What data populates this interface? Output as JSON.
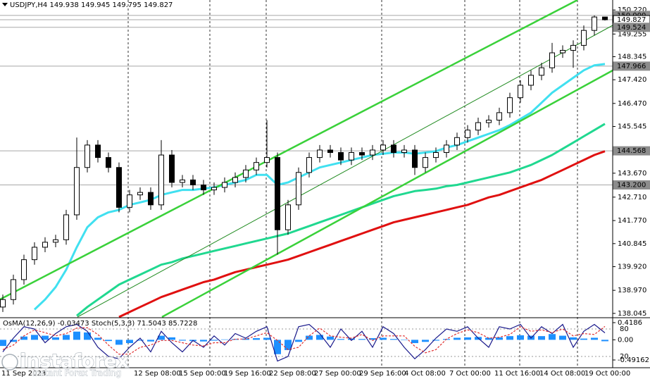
{
  "chart_data": [
    {
      "type": "candlestick",
      "title": "USDJPY,H4  149.938 149.945 149.795 149.827",
      "ylim": [
        137.9,
        150.62
      ],
      "yticks": [
        {
          "value": 150.22,
          "label": "150.220"
        },
        149.255,
        148.345,
        {
          "value": 147.42,
          "label": "147.420"
        },
        {
          "value": 146.47,
          "label": "146.470"
        },
        145.545,
        {
          "value": 143.67,
          "label": "143.670"
        },
        {
          "value": 142.71,
          "label": "142.710"
        },
        {
          "value": 141.77,
          "label": "141.770"
        },
        140.845,
        {
          "value": 139.92,
          "label": "139.920"
        },
        {
          "value": 138.97,
          "label": "138.970"
        },
        138.045
      ],
      "price_levels": [
        {
          "value": 150,
          "label": "150.000",
          "color": "#8c8c8c"
        },
        {
          "value": 149.827,
          "label": "149.827",
          "color": "#ffffff"
        },
        {
          "value": 149.524,
          "label": "149.524",
          "color": "#8c8c8c"
        },
        {
          "value": 147.966,
          "label": "147.966",
          "color": "#8c8c8c"
        },
        {
          "value": 144.568,
          "label": "144.568",
          "color": "#8c8c8c"
        },
        {
          "value": 143.2,
          "label": "143.200",
          "color": "#8c8c8c"
        }
      ],
      "open": [
        138.3,
        138.6,
        139.4,
        140.2,
        140.7,
        140.9,
        141.0,
        142.0,
        143.9,
        144.8,
        144.3,
        143.9,
        142.3,
        142.8,
        142.9,
        142.4,
        144.4,
        143.3,
        143.4,
        143.2,
        143.0,
        143.1,
        143.3,
        143.5,
        143.8,
        144.1,
        144.3,
        141.4,
        142.4,
        143.7,
        144.3,
        144.6,
        144.5,
        144.2,
        144.5,
        144.4,
        144.6,
        144.8,
        144.5,
        144.6,
        143.9,
        144.3,
        144.5,
        144.8,
        145.1,
        145.4,
        145.7,
        145.8,
        146.1,
        146.7,
        147.2,
        147.6,
        147.9,
        148.5,
        148.6,
        148.8,
        149.4,
        149.938
      ],
      "high": [
        138.8,
        139.6,
        140.4,
        140.9,
        141.1,
        141.2,
        142.2,
        145.1,
        145.0,
        145.0,
        144.5,
        144.1,
        143.0,
        143.1,
        143.1,
        145.0,
        144.6,
        143.6,
        143.6,
        143.4,
        143.3,
        143.5,
        143.7,
        144.0,
        144.3,
        145.8,
        144.5,
        142.6,
        143.9,
        144.5,
        144.8,
        144.8,
        144.7,
        144.7,
        144.7,
        144.8,
        145.0,
        145.0,
        144.8,
        144.8,
        144.5,
        144.7,
        145.0,
        145.3,
        145.6,
        145.9,
        146.0,
        146.3,
        146.9,
        147.4,
        147.8,
        148.1,
        148.9,
        148.8,
        149.0,
        149.6,
        150.0,
        149.945
      ],
      "low": [
        138.1,
        138.4,
        139.2,
        140.0,
        140.5,
        140.7,
        140.8,
        141.8,
        143.7,
        144.1,
        143.7,
        142.1,
        142.1,
        142.6,
        142.2,
        142.2,
        143.1,
        143.1,
        143.0,
        142.8,
        142.8,
        142.9,
        143.1,
        143.3,
        143.6,
        143.9,
        140.4,
        141.2,
        142.2,
        143.5,
        144.1,
        144.3,
        144.0,
        144.0,
        144.2,
        144.2,
        144.4,
        144.3,
        144.3,
        143.6,
        143.7,
        144.1,
        144.3,
        144.6,
        144.9,
        145.2,
        145.5,
        145.6,
        145.9,
        146.5,
        147.0,
        147.4,
        147.7,
        148.3,
        147.9,
        148.6,
        149.2,
        149.795
      ],
      "close": [
        138.6,
        139.4,
        140.2,
        140.7,
        140.9,
        141.0,
        142.0,
        143.9,
        144.8,
        144.3,
        143.9,
        142.3,
        142.8,
        142.9,
        142.4,
        144.4,
        143.3,
        143.4,
        143.2,
        143.0,
        143.1,
        143.3,
        143.5,
        143.8,
        144.1,
        144.3,
        141.4,
        142.4,
        143.7,
        144.3,
        144.6,
        144.5,
        144.2,
        144.5,
        144.4,
        144.6,
        144.8,
        144.5,
        144.6,
        143.9,
        144.3,
        144.5,
        144.8,
        145.1,
        145.4,
        145.7,
        145.8,
        146.1,
        146.7,
        147.2,
        147.6,
        147.9,
        148.5,
        148.6,
        148.8,
        149.4,
        149.938,
        149.827
      ],
      "moving_averages": [
        {
          "color": "#40e0f0",
          "values": [
            null,
            null,
            null,
            138.2,
            138.6,
            139.1,
            139.8,
            140.7,
            141.5,
            141.9,
            142.1,
            142.2,
            142.4,
            142.5,
            142.6,
            142.8,
            142.9,
            143.0,
            143.0,
            143.05,
            143.1,
            143.2,
            143.3,
            143.4,
            143.6,
            143.6,
            143.2,
            143.3,
            143.5,
            143.7,
            143.9,
            144.0,
            144.1,
            144.2,
            144.3,
            144.4,
            144.45,
            144.5,
            144.5,
            144.45,
            144.5,
            144.55,
            144.7,
            144.8,
            144.95,
            145.1,
            145.25,
            145.4,
            145.6,
            145.85,
            146.1,
            146.5,
            146.9,
            147.2,
            147.5,
            147.8,
            148.0,
            148.05
          ]
        },
        {
          "color": "#20d890",
          "values": [
            null,
            null,
            null,
            null,
            null,
            null,
            null,
            137.95,
            138.3,
            138.6,
            138.9,
            139.2,
            139.4,
            139.6,
            139.8,
            140.0,
            140.1,
            140.25,
            140.35,
            140.45,
            140.55,
            140.65,
            140.75,
            140.85,
            140.95,
            141.05,
            141.15,
            141.25,
            141.4,
            141.55,
            141.7,
            141.85,
            142.0,
            142.15,
            142.3,
            142.45,
            142.6,
            142.75,
            142.85,
            142.95,
            143.0,
            143.05,
            143.15,
            143.2,
            143.3,
            143.4,
            143.5,
            143.6,
            143.7,
            143.85,
            144.0,
            144.2,
            144.4,
            144.65,
            144.9,
            145.15,
            145.4,
            145.65
          ]
        },
        {
          "color": "#e01010",
          "values": [
            null,
            null,
            null,
            null,
            null,
            null,
            null,
            null,
            null,
            null,
            null,
            137.9,
            138.1,
            138.3,
            138.5,
            138.7,
            138.85,
            139.0,
            139.15,
            139.3,
            139.4,
            139.55,
            139.7,
            139.8,
            139.9,
            140.0,
            140.1,
            140.2,
            140.35,
            140.5,
            140.65,
            140.8,
            140.95,
            141.1,
            141.25,
            141.4,
            141.55,
            141.7,
            141.8,
            141.9,
            142.0,
            142.1,
            142.2,
            142.3,
            142.4,
            142.55,
            142.7,
            142.8,
            142.95,
            143.1,
            143.25,
            143.4,
            143.6,
            143.8,
            144.0,
            144.2,
            144.4,
            144.55
          ]
        }
      ]
    },
    {
      "type": "bar",
      "title": "OsMA(12,26,9) -0.03473  Stoch(5,3,3) 71.5043 85.7228",
      "color": "#1e90ff",
      "ylim": [
        -0.49162,
        0.4186
      ],
      "yticks": [
        0.4186,
        {
          "value": 0,
          "label": "0.00"
        },
        -0.49162
      ],
      "y2lim": [
        0,
        100
      ],
      "y2ticks": [
        80,
        20
      ],
      "values": [
        -0.15,
        -0.05,
        0.08,
        0.12,
        0.1,
        0.06,
        0.12,
        0.2,
        0.18,
        0.05,
        -0.03,
        -0.12,
        -0.08,
        -0.02,
        -0.04,
        0.1,
        0.06,
        -0.02,
        -0.03,
        -0.04,
        -0.02,
        0.01,
        0.02,
        0.03,
        0.04,
        0.05,
        -0.35,
        -0.25,
        -0.05,
        0.1,
        0.12,
        0.08,
        0.02,
        0.03,
        0.02,
        0.04,
        0.05,
        0.02,
        -0.01,
        -0.08,
        -0.05,
        -0.02,
        0.02,
        0.05,
        0.06,
        0.07,
        0.05,
        0.06,
        0.09,
        0.11,
        0.1,
        0.09,
        0.14,
        0.1,
        0.06,
        0.03,
        0.05,
        -0.03473
      ],
      "series": [
        {
          "axis": "y2",
          "color": "#1a1a8c",
          "dash": false,
          "values": [
            30,
            60,
            85,
            80,
            50,
            70,
            85,
            90,
            75,
            40,
            20,
            15,
            40,
            60,
            30,
            75,
            50,
            30,
            55,
            40,
            65,
            45,
            70,
            60,
            75,
            85,
            10,
            20,
            85,
            90,
            70,
            40,
            80,
            55,
            75,
            40,
            85,
            70,
            40,
            15,
            35,
            60,
            80,
            75,
            85,
            60,
            40,
            85,
            80,
            90,
            60,
            85,
            70,
            90,
            40,
            75,
            90,
            71.5043
          ]
        },
        {
          "axis": "y2",
          "color": "#e03030",
          "dash": true,
          "values": [
            35,
            45,
            65,
            78,
            72,
            65,
            70,
            82,
            83,
            68,
            45,
            25,
            25,
            40,
            45,
            55,
            55,
            50,
            45,
            43,
            50,
            50,
            58,
            58,
            65,
            72,
            55,
            35,
            40,
            65,
            82,
            65,
            62,
            60,
            68,
            55,
            65,
            65,
            65,
            42,
            28,
            35,
            58,
            70,
            78,
            72,
            60,
            62,
            68,
            85,
            75,
            78,
            72,
            80,
            65,
            70,
            68,
            85.7228
          ]
        }
      ]
    }
  ],
  "time_axis": [
    "11 Sep 2023",
    "12 Sep 08:00",
    "15 Sep 00:00",
    "19 Sep 16:00",
    "22 Sep 08:00",
    "27 Sep 00:00",
    "29 Sep 16:00",
    "4 Oct 08:00",
    "7 Oct 00:00",
    "11 Oct 16:00",
    "14 Oct 08:00",
    "19 Oct 00:00"
  ],
  "watermark": {
    "brand": "instaforex",
    "tagline": "Instant Forex Trading"
  }
}
